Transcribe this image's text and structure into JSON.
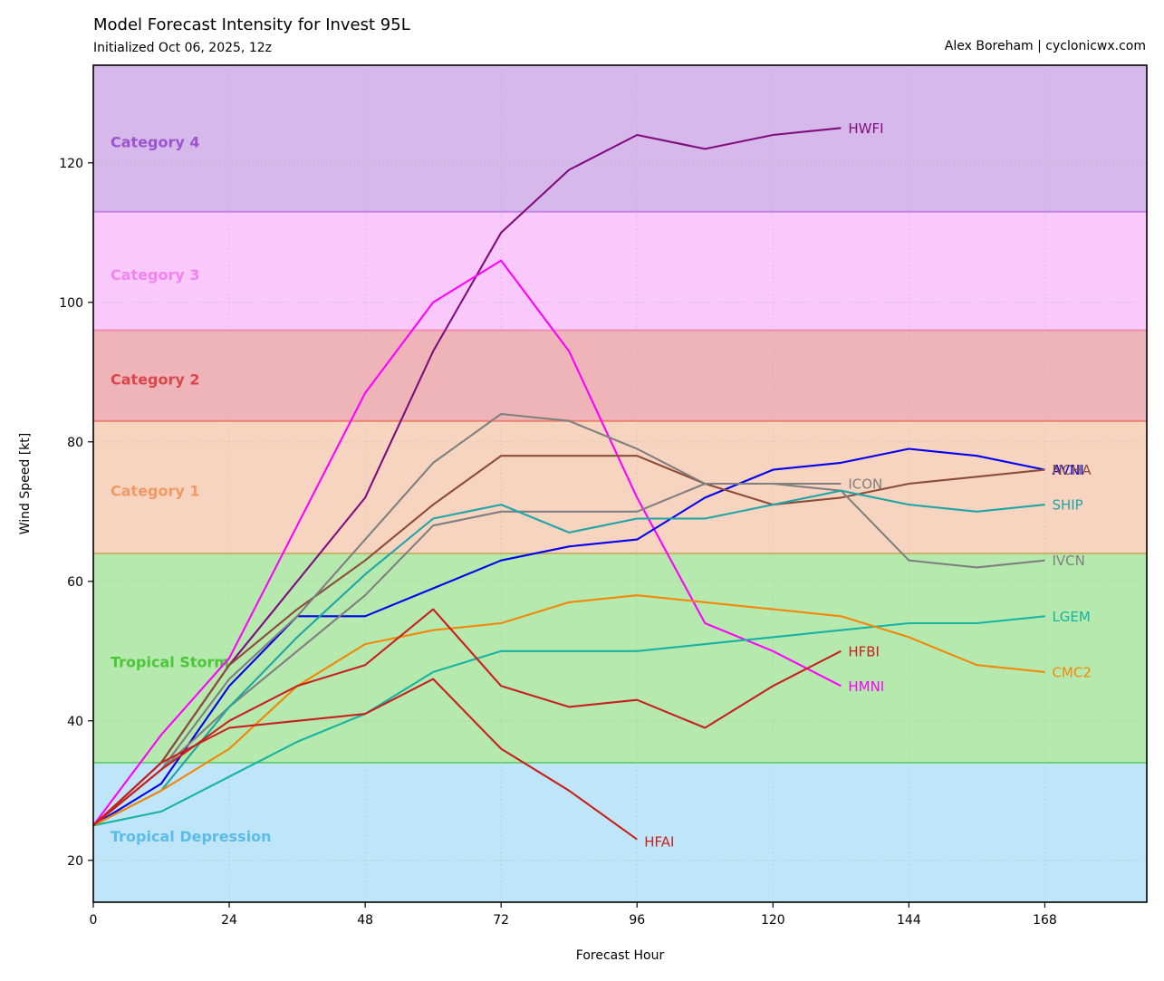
{
  "header": {
    "title": "Model Forecast Intensity for Invest 95L",
    "subtitle": "Initialized Oct 06, 2025, 12z",
    "credit": "Alex Boreham | cyclonicwx.com"
  },
  "chart_data": {
    "type": "line",
    "xlabel": "Forecast Hour",
    "ylabel": "Wind Speed [kt]",
    "xlim": [
      0,
      186
    ],
    "ylim": [
      14,
      134
    ],
    "xticks": [
      0,
      24,
      48,
      72,
      96,
      120,
      144,
      168
    ],
    "yticks": [
      20,
      40,
      60,
      80,
      100,
      120
    ],
    "grid": true,
    "bands": [
      {
        "name": "Tropical Depression",
        "from": 14,
        "to": 34,
        "fill": "#bfe5f8",
        "line": "#6fcf7a",
        "text": "#5bbce8",
        "label_y": 23.5
      },
      {
        "name": "Tropical Storm",
        "from": 34,
        "to": 64,
        "fill": "#b5e9ad",
        "line": "#c7b36a",
        "text": "#4cc53a",
        "label_y": 48.5
      },
      {
        "name": "Category 1",
        "from": 64,
        "to": 83,
        "fill": "#f7d4bf",
        "line": "#ea7f6e",
        "text": "#ef9a63",
        "label_y": 73
      },
      {
        "name": "Category 2",
        "from": 83,
        "to": 96,
        "fill": "#efb4b8",
        "line": "#ef8cb4",
        "text": "#d9464b",
        "label_y": 89
      },
      {
        "name": "Category 3",
        "from": 96,
        "to": 113,
        "fill": "#f8c9fa",
        "line": "#c584e8",
        "text": "#f383f0",
        "label_y": 104
      },
      {
        "name": "Category 4",
        "from": 113,
        "to": 134,
        "fill": "#d6b8ea",
        "line": null,
        "text": "#9a54cf",
        "label_y": 123
      }
    ],
    "series": [
      {
        "name": "HWFI",
        "color": "#7f0d7f",
        "x": [
          0,
          12,
          24,
          36,
          48,
          60,
          72,
          84,
          96,
          108,
          120,
          132
        ],
        "y": [
          25,
          34,
          48,
          60,
          72,
          93,
          110,
          119,
          124,
          122,
          124,
          125
        ],
        "label_y": 125
      },
      {
        "name": "HMNI",
        "color": "#ff00ff",
        "x": [
          0,
          12,
          24,
          36,
          48,
          60,
          72,
          84,
          96,
          108,
          120,
          132
        ],
        "y": [
          25,
          38,
          49,
          68,
          87,
          100,
          106,
          93,
          72,
          54,
          50,
          45
        ],
        "label_y": 45
      },
      {
        "name": "AVNI",
        "color": "#0000ee",
        "x": [
          0,
          12,
          24,
          36,
          48,
          60,
          72,
          84,
          96,
          108,
          120,
          132,
          144,
          156,
          168
        ],
        "y": [
          25,
          31,
          45,
          55,
          55,
          59,
          63,
          65,
          66,
          72,
          76,
          77,
          79,
          78,
          76
        ],
        "label_y": 76
      },
      {
        "name": "NCHA",
        "color": "#8b4c3a",
        "x": [
          0,
          12,
          24,
          36,
          48,
          60,
          72,
          84,
          96,
          108,
          120,
          132,
          144,
          156,
          168
        ],
        "y": [
          25,
          34,
          48,
          56,
          63,
          71,
          78,
          78,
          78,
          74,
          71,
          72,
          74,
          75,
          76
        ],
        "label_y": 76
      },
      {
        "name": "ICON",
        "color": "#7f7f7f",
        "x": [
          0,
          12,
          24,
          36,
          48,
          60,
          72,
          84,
          96,
          108,
          120,
          132
        ],
        "y": [
          25,
          33,
          46,
          55,
          66,
          77,
          84,
          83,
          79,
          74,
          74,
          74
        ],
        "label_y": 74
      },
      {
        "name": "IVCN",
        "color": "#7f7f7f",
        "x": [
          0,
          12,
          24,
          36,
          48,
          60,
          72,
          84,
          96,
          108,
          120,
          132,
          144,
          156,
          168
        ],
        "y": [
          25,
          33,
          42,
          50,
          58,
          68,
          70,
          70,
          70,
          74,
          74,
          73,
          63,
          62,
          63
        ],
        "label_y": 63
      },
      {
        "name": "SHIP",
        "color": "#1fa5a5",
        "x": [
          0,
          12,
          24,
          36,
          48,
          60,
          72,
          84,
          96,
          108,
          120,
          132,
          144,
          156,
          168
        ],
        "y": [
          25,
          30,
          42,
          52,
          61,
          69,
          71,
          67,
          69,
          69,
          71,
          73,
          71,
          70,
          71
        ],
        "label_y": 71
      },
      {
        "name": "LGEM",
        "color": "#17b3a3",
        "x": [
          0,
          12,
          24,
          36,
          48,
          60,
          72,
          84,
          96,
          108,
          120,
          132,
          144,
          156,
          168
        ],
        "y": [
          25,
          27,
          32,
          37,
          41,
          47,
          50,
          50,
          50,
          51,
          52,
          53,
          54,
          54,
          55
        ],
        "label_y": 55
      },
      {
        "name": "CMC2",
        "color": "#f28708",
        "x": [
          0,
          12,
          24,
          36,
          48,
          60,
          72,
          84,
          96,
          108,
          120,
          132,
          144,
          156,
          168
        ],
        "y": [
          25,
          30,
          36,
          45,
          51,
          53,
          54,
          57,
          58,
          57,
          56,
          55,
          52,
          48,
          47
        ],
        "label_y": 47
      },
      {
        "name": "HFBI",
        "color": "#c8201e",
        "x": [
          0,
          12,
          24,
          36,
          48,
          60,
          72,
          84,
          96,
          108,
          120,
          132
        ],
        "y": [
          25,
          33,
          40,
          45,
          48,
          56,
          45,
          42,
          43,
          39,
          45,
          50
        ],
        "label_y": 50
      },
      {
        "name": "HFAI",
        "color": "#c8201e",
        "x": [
          0,
          12,
          24,
          36,
          48,
          60,
          72,
          84,
          96
        ],
        "y": [
          25,
          34,
          39,
          40,
          41,
          46,
          36,
          30,
          23
        ],
        "label_y": 22.7
      }
    ]
  }
}
